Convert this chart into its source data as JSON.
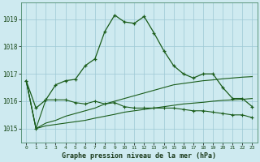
{
  "title": "Graphe pression niveau de la mer (hPa)",
  "background_color": "#ceeaf0",
  "grid_color": "#9dc8d4",
  "line_color": "#1a5c1a",
  "x_labels": [
    "0",
    "1",
    "2",
    "3",
    "4",
    "5",
    "6",
    "7",
    "8",
    "9",
    "10",
    "11",
    "12",
    "13",
    "14",
    "15",
    "16",
    "17",
    "18",
    "19",
    "20",
    "21",
    "22",
    "23"
  ],
  "ylim": [
    1014.5,
    1019.6
  ],
  "yticks": [
    1015,
    1016,
    1017,
    1018,
    1019
  ],
  "series1": [
    1016.75,
    1015.75,
    1016.05,
    1016.6,
    1016.75,
    1016.8,
    1017.3,
    1017.55,
    1018.55,
    1019.15,
    1018.9,
    1018.85,
    1019.1,
    1018.5,
    1017.85,
    1017.3,
    1017.0,
    1016.85,
    1017.0,
    1017.0,
    1016.5,
    1016.1,
    1016.1,
    1015.8
  ],
  "series2": [
    1016.75,
    1015.0,
    1016.05,
    1016.05,
    1016.05,
    1015.95,
    1015.9,
    1016.0,
    1015.9,
    1015.95,
    1015.8,
    1015.75,
    1015.75,
    1015.75,
    1015.75,
    1015.75,
    1015.7,
    1015.65,
    1015.65,
    1015.6,
    1015.55,
    1015.5,
    1015.5,
    1015.4
  ],
  "series3": [
    1016.75,
    1015.0,
    1015.2,
    1015.3,
    1015.45,
    1015.55,
    1015.65,
    1015.75,
    1015.9,
    1016.0,
    1016.1,
    1016.2,
    1016.3,
    1016.4,
    1016.5,
    1016.6,
    1016.65,
    1016.7,
    1016.75,
    1016.78,
    1016.82,
    1016.85,
    1016.88,
    1016.9
  ],
  "series4": [
    1016.75,
    1015.0,
    1015.1,
    1015.15,
    1015.2,
    1015.25,
    1015.3,
    1015.38,
    1015.45,
    1015.52,
    1015.6,
    1015.65,
    1015.7,
    1015.75,
    1015.8,
    1015.85,
    1015.9,
    1015.93,
    1015.96,
    1016.0,
    1016.03,
    1016.05,
    1016.07,
    1016.1
  ]
}
